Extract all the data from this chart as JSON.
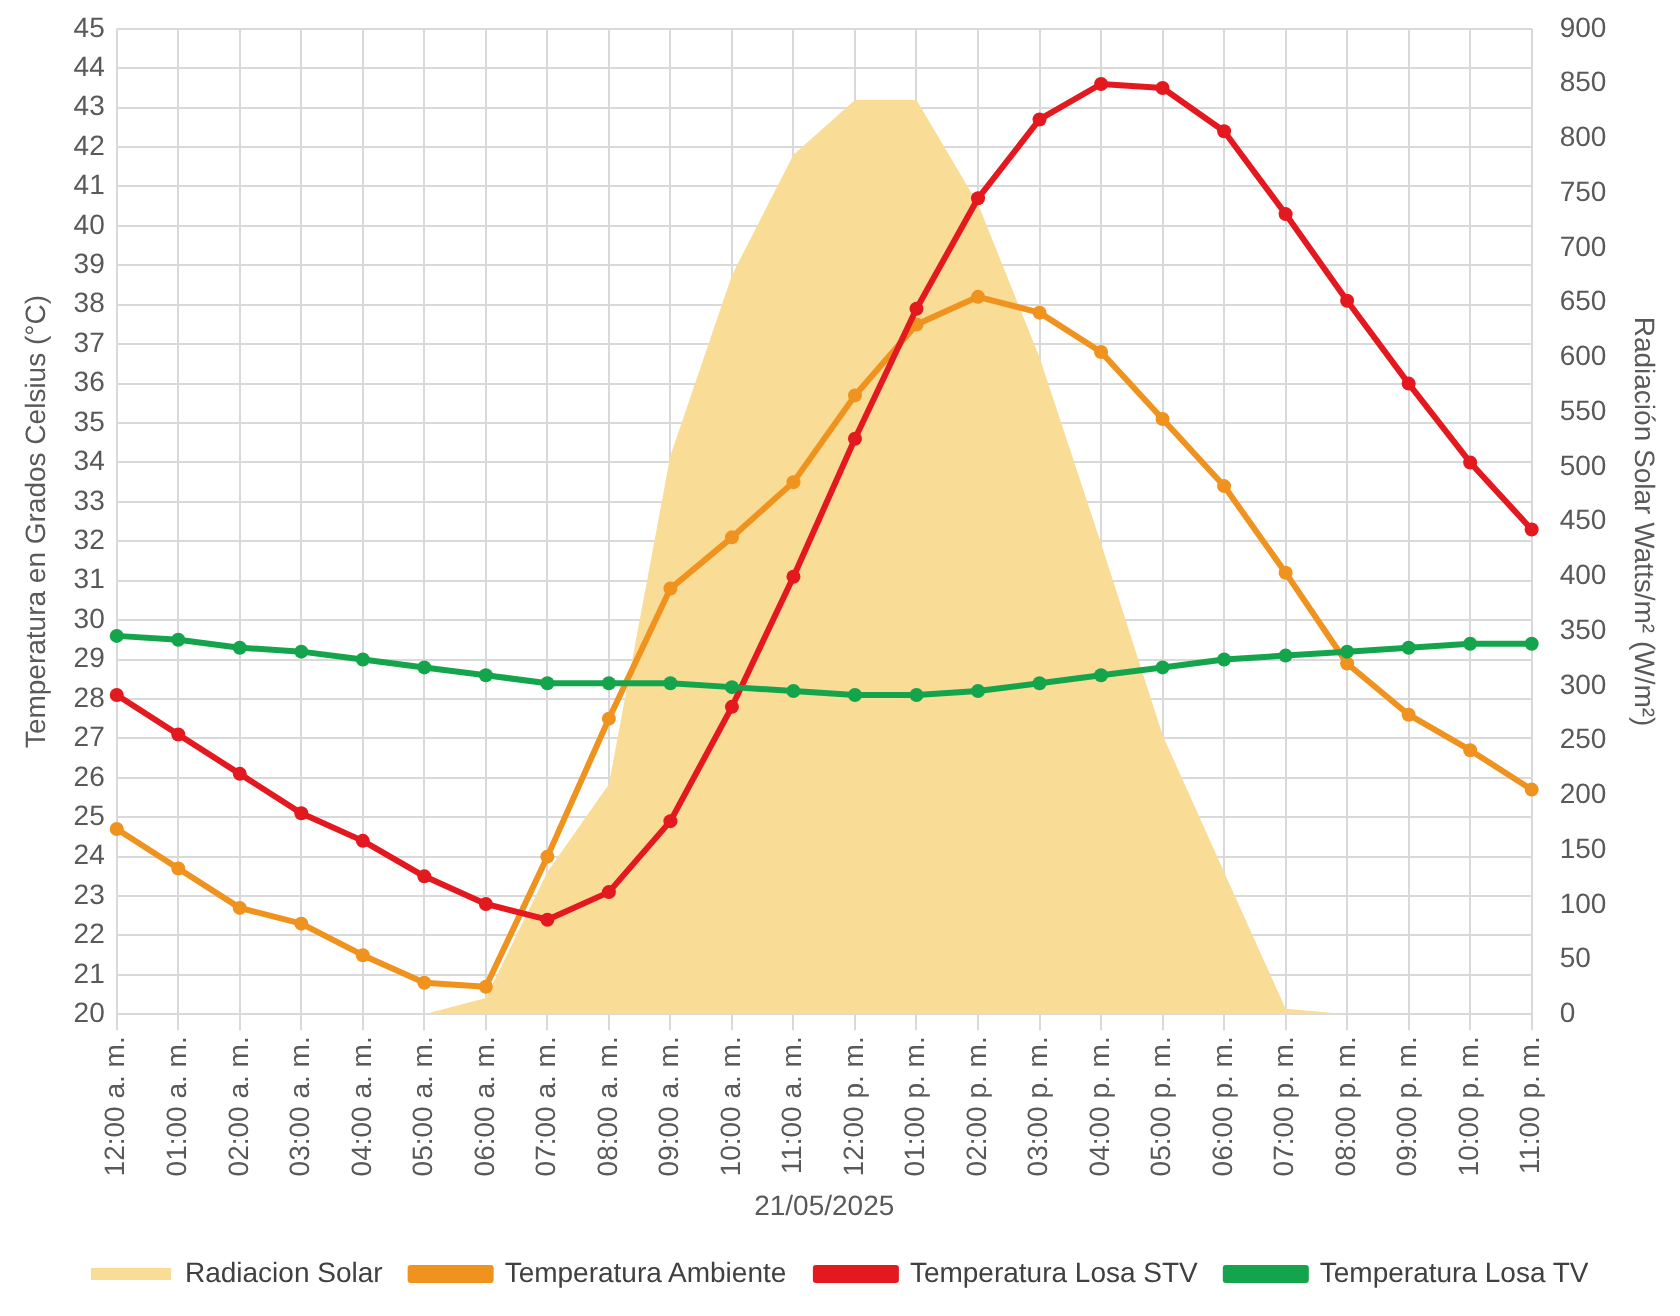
{
  "chart_data": {
    "type": "line",
    "xlabel": "21/05/2025",
    "ylabel": "Temperatura en Grados Celsius (°C)",
    "y2label": "Radiación Solar Watts/m² (W/m²)",
    "categories": [
      "12:00 a. m.",
      "01:00 a. m.",
      "02:00 a. m.",
      "03:00 a. m.",
      "04:00 a. m.",
      "05:00 a. m.",
      "06:00 a. m.",
      "07:00 a. m.",
      "08:00 a. m.",
      "09:00 a. m.",
      "10:00 a. m.",
      "11:00 a. m.",
      "12:00 p. m.",
      "01:00 p. m.",
      "02:00 p. m.",
      "03:00 p. m.",
      "04:00 p. m.",
      "05:00 p. m.",
      "06:00 p. m.",
      "07:00 p. m.",
      "08:00 p. m.",
      "09:00 p. m.",
      "10:00 p. m.",
      "11:00 p. m."
    ],
    "series": [
      {
        "name": "Radiacion Solar",
        "type": "area",
        "axis": "y2",
        "marker": "none",
        "color": "#f9dc96",
        "values": [
          0,
          0,
          0,
          0,
          0,
          0,
          15,
          130,
          210,
          510,
          675,
          785,
          835,
          835,
          740,
          600,
          430,
          255,
          130,
          5,
          0,
          0,
          0,
          0
        ]
      },
      {
        "name": "Temperatura Ambiente",
        "color": "#f0921e",
        "values": [
          24.7,
          23.7,
          22.7,
          22.3,
          21.5,
          20.8,
          20.7,
          24.0,
          27.5,
          30.8,
          32.1,
          33.5,
          35.7,
          37.5,
          38.2,
          37.8,
          36.8,
          35.1,
          33.4,
          31.2,
          28.9,
          27.6,
          26.7,
          25.7
        ]
      },
      {
        "name": "Temperatura Losa STV",
        "color": "#e3191f",
        "values": [
          28.1,
          27.1,
          26.1,
          25.1,
          24.4,
          23.5,
          22.8,
          22.4,
          23.1,
          24.9,
          27.8,
          31.1,
          34.6,
          37.9,
          40.7,
          42.7,
          43.6,
          43.5,
          42.4,
          40.3,
          38.1,
          36.0,
          34.0,
          32.3
        ]
      },
      {
        "name": "Temperatura Losa TV",
        "color": "#14a54c",
        "values": [
          29.6,
          29.5,
          29.3,
          29.2,
          29.0,
          28.8,
          28.6,
          28.4,
          28.4,
          28.4,
          28.3,
          28.2,
          28.1,
          28.1,
          28.2,
          28.4,
          28.6,
          28.8,
          29.0,
          29.1,
          29.2,
          29.3,
          29.4,
          29.4
        ]
      }
    ],
    "ylim": [
      20,
      45
    ],
    "yticks": [
      20,
      21,
      22,
      23,
      24,
      25,
      26,
      27,
      28,
      29,
      30,
      31,
      32,
      33,
      34,
      35,
      36,
      37,
      38,
      39,
      40,
      41,
      42,
      43,
      44,
      45
    ],
    "y2lim": [
      0,
      900
    ],
    "y2ticks": [
      0,
      50,
      100,
      150,
      200,
      250,
      300,
      350,
      400,
      450,
      500,
      550,
      600,
      650,
      700,
      750,
      800,
      850,
      900
    ],
    "grid": true,
    "legend": "bottom",
    "marker": "circle",
    "line_style": "solid"
  }
}
